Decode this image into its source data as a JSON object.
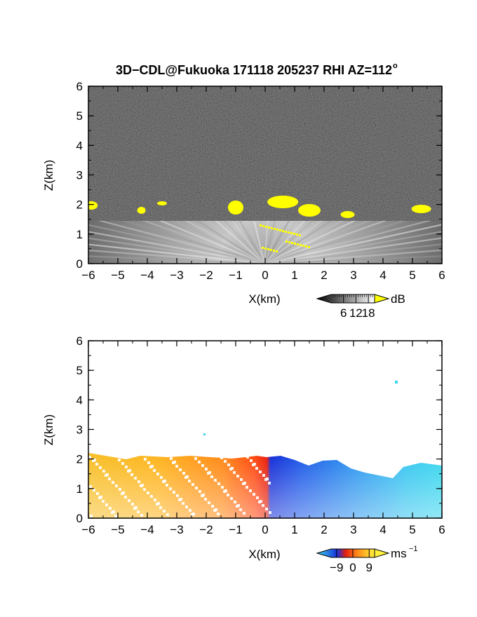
{
  "figure": {
    "title": "3D−CDL@Fukuoka 171118 205237 RHI AZ=112",
    "title_degree": "o"
  },
  "chart_data": [
    {
      "type": "heatmap",
      "name": "backscatter-intensity",
      "xlabel": "X(km)",
      "ylabel": "Z(km)",
      "xlim": [
        -6,
        6
      ],
      "ylim": [
        0,
        6
      ],
      "xticks": [
        -6,
        -5,
        -4,
        -3,
        -2,
        -1,
        0,
        1,
        2,
        3,
        4,
        5,
        6
      ],
      "yticks": [
        0,
        1,
        2,
        3,
        4,
        5,
        6
      ],
      "colorbar": {
        "unit": "dB",
        "ticks": [
          6,
          12,
          18
        ],
        "range": [
          0,
          21
        ],
        "colormap": "grayscale, yellow above 18"
      },
      "features": {
        "background_noise_top_km": 6,
        "echo_region_top_km": 2.0,
        "yellow_patches_x_km": [
          -5.9,
          -4.2,
          -3.5,
          -1.0,
          0.6,
          1.5,
          2.8,
          5.3
        ]
      },
      "colors": {
        "low": "#0a0a0a",
        "high": "#f2f2f2",
        "over": "#ffff00"
      }
    },
    {
      "type": "heatmap",
      "name": "radial-velocity",
      "xlabel": "X(km)",
      "ylabel": "Z(km)",
      "xlim": [
        -6,
        6
      ],
      "ylim": [
        0,
        6
      ],
      "xticks": [
        -6,
        -5,
        -4,
        -3,
        -2,
        -1,
        0,
        1,
        2,
        3,
        4,
        5,
        6
      ],
      "yticks": [
        0,
        1,
        2,
        3,
        4,
        5,
        6
      ],
      "colorbar": {
        "unit": "ms",
        "unit_exponent": "−1",
        "ticks": [
          "−9",
          "0",
          "9"
        ],
        "tick_values": [
          -9,
          0,
          9
        ],
        "range": [
          -12,
          12
        ],
        "colormap": "cyan-blue-red-yellow"
      },
      "features": {
        "positive_side": "x < 0 (orange/yellow, toward +9)",
        "negative_side": "x > 0 (blue/cyan, toward -9)",
        "echo_region_top_km": 2.1
      },
      "colors": {
        "neg_far": "#3ad7ee",
        "neg": "#1a3cd8",
        "pos": "#f03a10",
        "pos_far": "#fff03c"
      }
    }
  ]
}
